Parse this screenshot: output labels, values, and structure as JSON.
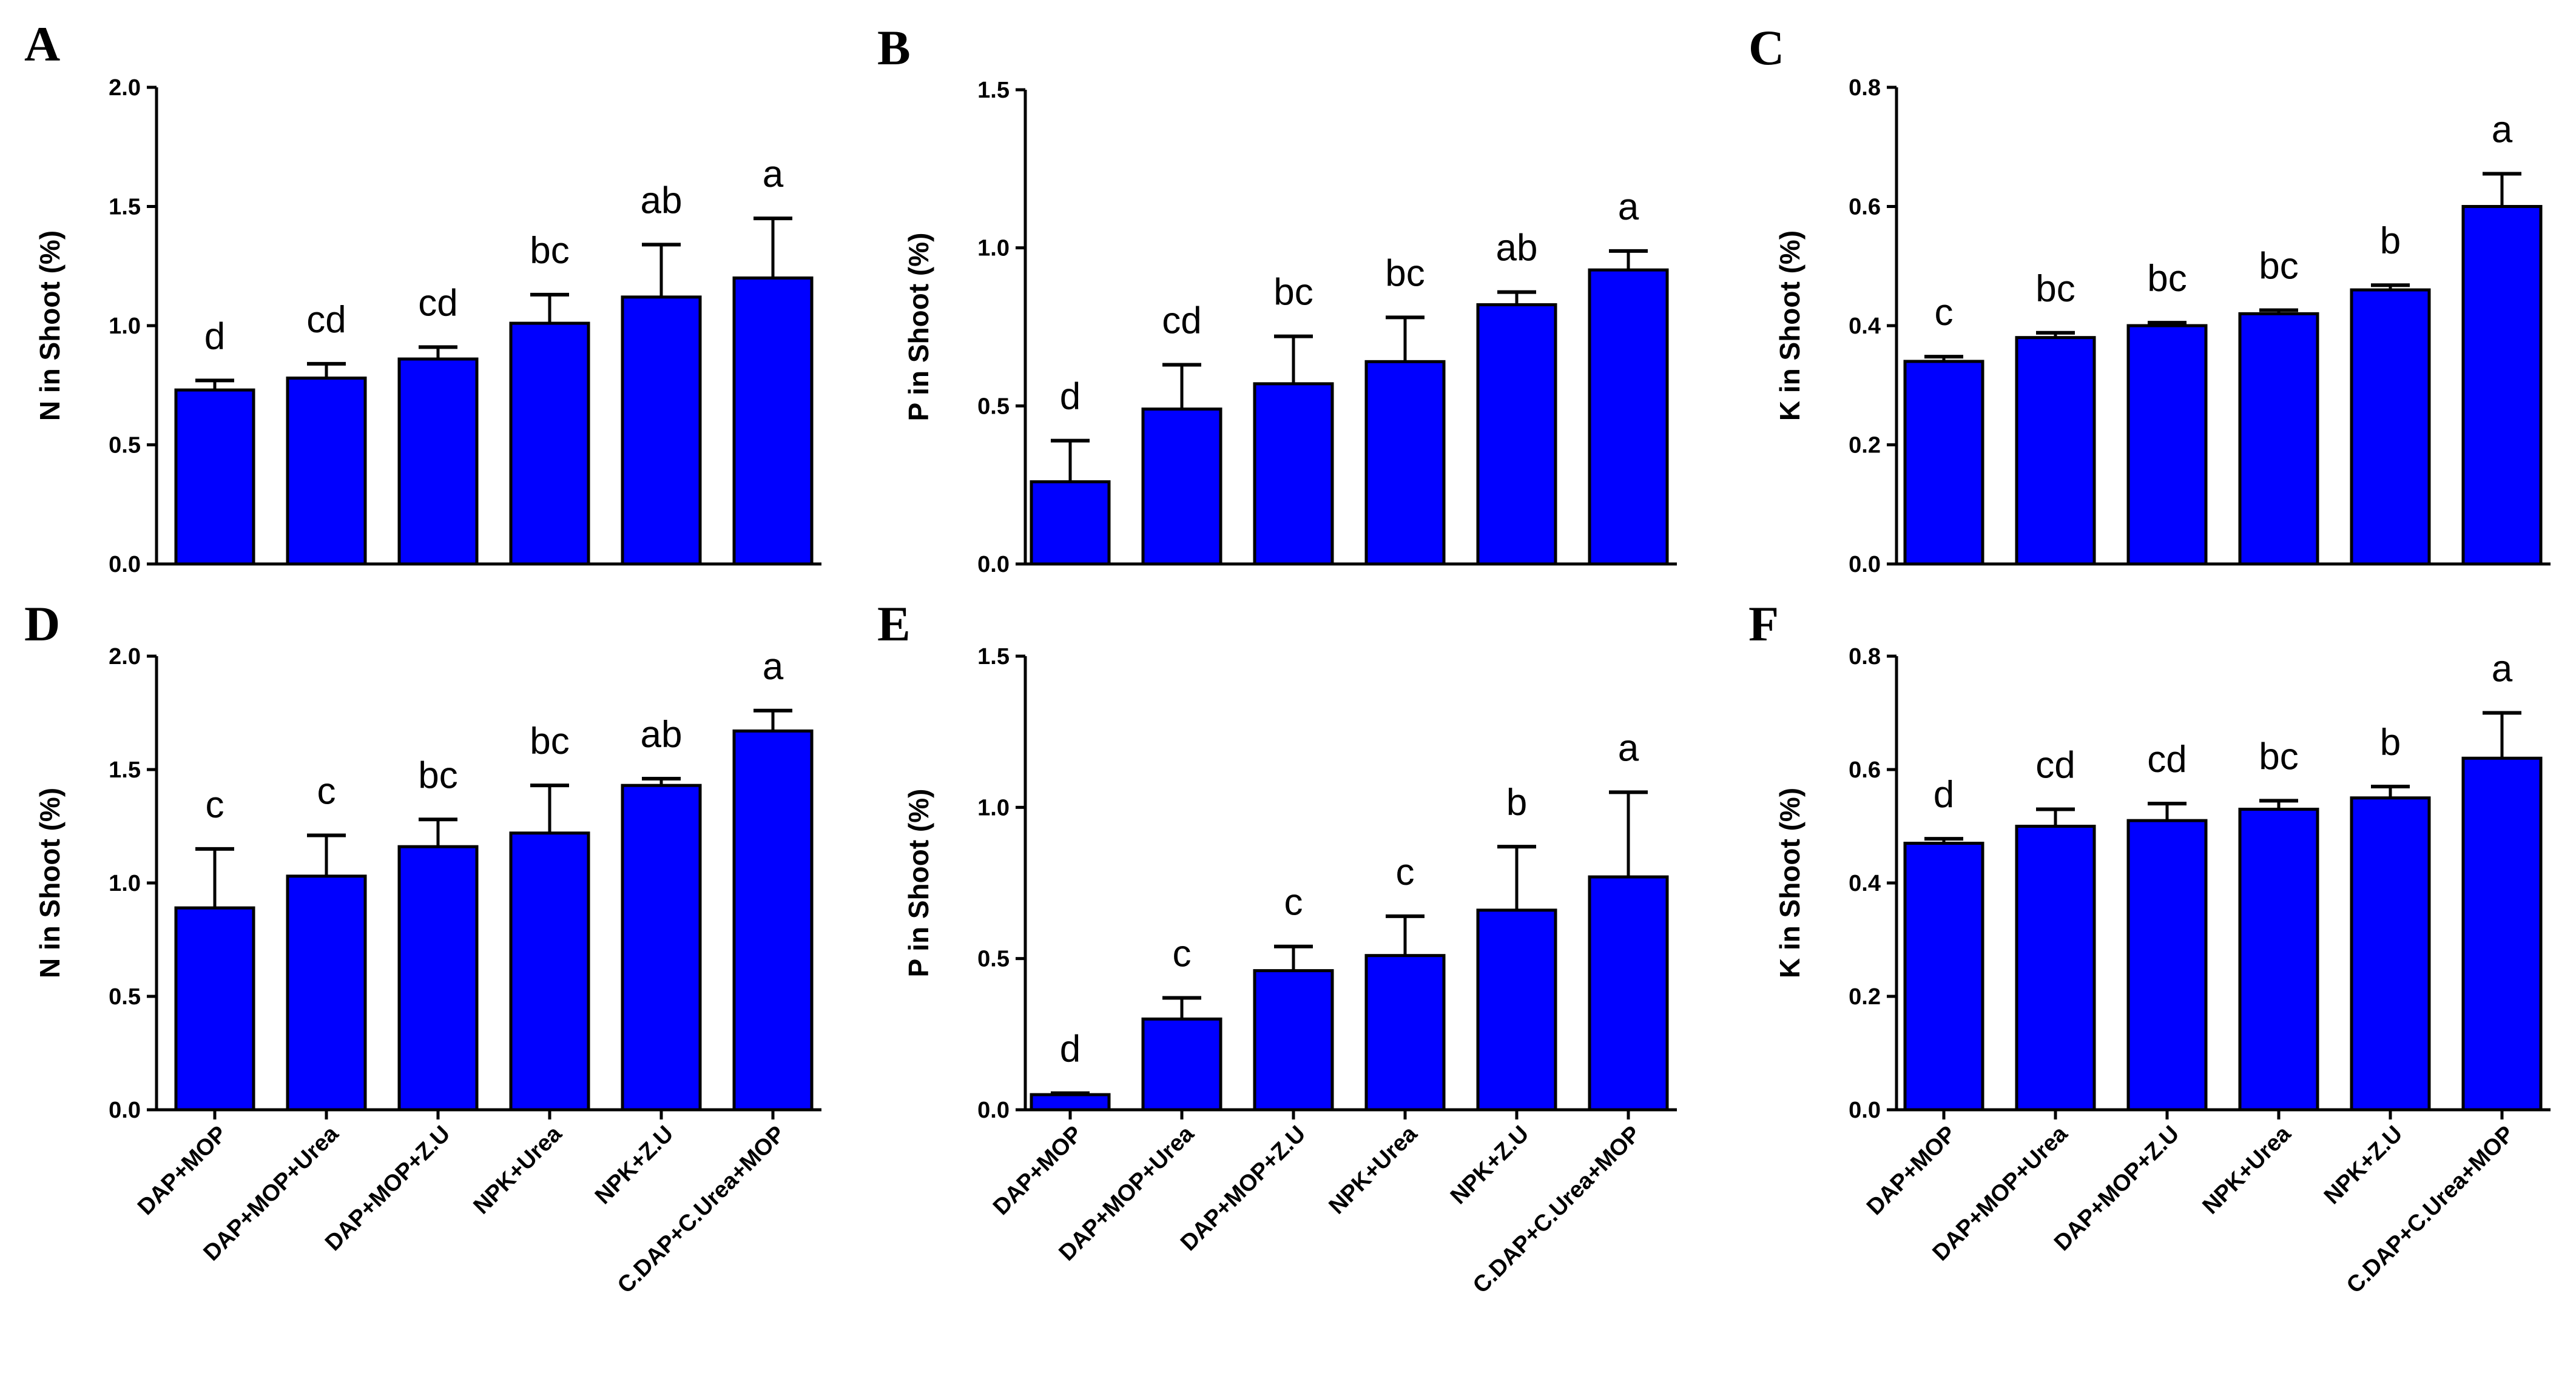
{
  "chart_data": [
    {
      "panel": "A",
      "type": "bar",
      "ylabel": "N in Shoot (%)",
      "ylim": [
        0,
        2.0
      ],
      "yticks": [
        "0.0",
        "0.5",
        "1.0",
        "1.5",
        "2.0"
      ],
      "categories": [
        "DAP+MOP",
        "DAP+MOP+Urea",
        "DAP+MOP+Z.U",
        "NPK+Urea",
        "NPK+Z.U",
        "C.DAP+C.Urea+MOP"
      ],
      "values": [
        0.73,
        0.78,
        0.86,
        1.01,
        1.12,
        1.2
      ],
      "errors": [
        0.04,
        0.06,
        0.05,
        0.12,
        0.22,
        0.25
      ],
      "letters": [
        "d",
        "cd",
        "cd",
        "bc",
        "ab",
        "a"
      ],
      "bar_color": "#0000ff",
      "show_categories": false
    },
    {
      "panel": "B",
      "type": "bar",
      "ylabel": "P in Shoot (%)",
      "ylim": [
        0,
        1.5
      ],
      "yticks": [
        "0.0",
        "0.5",
        "1.0",
        "1.5"
      ],
      "categories": [
        "DAP+MOP",
        "DAP+MOP+Urea",
        "DAP+MOP+Z.U",
        "NPK+Urea",
        "NPK+Z.U",
        "C.DAP+C.Urea+MOP"
      ],
      "values": [
        0.26,
        0.49,
        0.57,
        0.64,
        0.82,
        0.93
      ],
      "errors": [
        0.13,
        0.14,
        0.15,
        0.14,
        0.04,
        0.06
      ],
      "letters": [
        "d",
        "cd",
        "bc",
        "bc",
        "ab",
        "a"
      ],
      "bar_color": "#0000ff",
      "show_categories": false
    },
    {
      "panel": "C",
      "type": "bar",
      "ylabel": "K in Shoot (%)",
      "ylim": [
        0,
        0.8
      ],
      "yticks": [
        "0.0",
        "0.2",
        "0.4",
        "0.6",
        "0.8"
      ],
      "categories": [
        "DAP+MOP",
        "DAP+MOP+Urea",
        "DAP+MOP+Z.U",
        "NPK+Urea",
        "NPK+Z.U",
        "C.DAP+C.Urea+MOP"
      ],
      "values": [
        0.34,
        0.38,
        0.4,
        0.42,
        0.46,
        0.6
      ],
      "errors": [
        0.008,
        0.008,
        0.005,
        0.006,
        0.008,
        0.055
      ],
      "letters": [
        "c",
        "bc",
        "bc",
        "bc",
        "b",
        "a"
      ],
      "bar_color": "#0000ff",
      "show_categories": false
    },
    {
      "panel": "D",
      "type": "bar",
      "ylabel": "N in Shoot (%)",
      "ylim": [
        0,
        2.0
      ],
      "yticks": [
        "0.0",
        "0.5",
        "1.0",
        "1.5",
        "2.0"
      ],
      "categories": [
        "DAP+MOP",
        "DAP+MOP+Urea",
        "DAP+MOP+Z.U",
        "NPK+Urea",
        "NPK+Z.U",
        "C.DAP+C.Urea+MOP"
      ],
      "values": [
        0.89,
        1.03,
        1.16,
        1.22,
        1.43,
        1.67
      ],
      "errors": [
        0.26,
        0.18,
        0.12,
        0.21,
        0.03,
        0.09
      ],
      "letters": [
        "c",
        "c",
        "bc",
        "bc",
        "ab",
        "a"
      ],
      "bar_color": "#0000ff",
      "show_categories": true
    },
    {
      "panel": "E",
      "type": "bar",
      "ylabel": "P in Shoot (%)",
      "ylim": [
        0,
        1.5
      ],
      "yticks": [
        "0.0",
        "0.5",
        "1.0",
        "1.5"
      ],
      "categories": [
        "DAP+MOP",
        "DAP+MOP+Urea",
        "DAP+MOP+Z.U",
        "NPK+Urea",
        "NPK+Z.U",
        "C.DAP+C.Urea+MOP"
      ],
      "values": [
        0.05,
        0.3,
        0.46,
        0.51,
        0.66,
        0.77
      ],
      "errors": [
        0.005,
        0.07,
        0.08,
        0.13,
        0.21,
        0.28
      ],
      "letters": [
        "d",
        "c",
        "c",
        "c",
        "b",
        "a"
      ],
      "bar_color": "#0000ff",
      "show_categories": true
    },
    {
      "panel": "F",
      "type": "bar",
      "ylabel": "K in Shoot (%)",
      "ylim": [
        0,
        0.8
      ],
      "yticks": [
        "0.0",
        "0.2",
        "0.4",
        "0.6",
        "0.8"
      ],
      "categories": [
        "DAP+MOP",
        "DAP+MOP+Urea",
        "DAP+MOP+Z.U",
        "NPK+Urea",
        "NPK+Z.U",
        "C.DAP+C.Urea+MOP"
      ],
      "values": [
        0.47,
        0.5,
        0.51,
        0.53,
        0.55,
        0.62
      ],
      "errors": [
        0.008,
        0.03,
        0.03,
        0.015,
        0.02,
        0.08
      ],
      "letters": [
        "d",
        "cd",
        "cd",
        "bc",
        "b",
        "a"
      ],
      "bar_color": "#0000ff",
      "show_categories": true
    }
  ]
}
